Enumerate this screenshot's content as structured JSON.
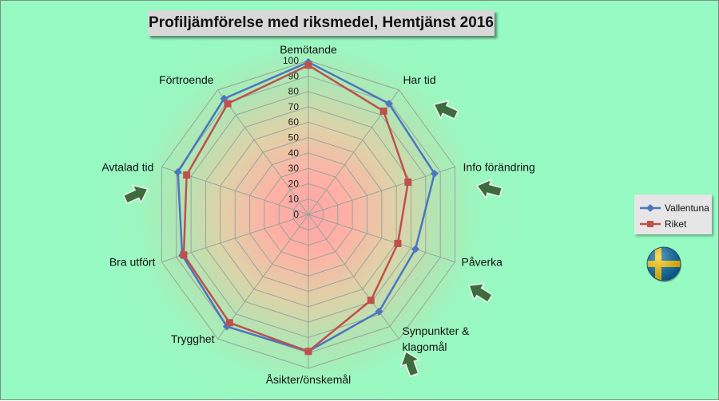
{
  "chart_data": {
    "type": "radar",
    "title": "Profiljämförelse med riksmedel, Hemtjänst 2016",
    "categories": [
      "Bemötande",
      "Har tid",
      "Info förändring",
      "Påverka",
      "Synpunkter &\nklagomål",
      "Åsikter/önskemål",
      "Trygghet",
      "Bra utfört",
      "Avtalad tid",
      "Förtroende"
    ],
    "ticks": [
      "0",
      "10",
      "20",
      "30",
      "40",
      "50",
      "60",
      "70",
      "80",
      "90",
      "100"
    ],
    "rlim": [
      0,
      100
    ],
    "series": [
      {
        "name": "Vallentuna",
        "color": "#4b76c1",
        "marker": "diamond",
        "values": [
          99,
          89,
          86,
          73,
          78,
          89,
          90,
          86,
          89,
          93
        ]
      },
      {
        "name": "Riket",
        "color": "#c0504d",
        "marker": "square",
        "values": [
          97,
          83,
          68,
          61,
          69,
          89,
          87,
          85,
          83,
          89
        ]
      }
    ],
    "legend_position": "right",
    "grid": true
  },
  "colors": {
    "gridline": "#9aa59a",
    "arrow_fill": "#3e6a3e",
    "arrow_stroke": "#eef5ee",
    "flag_blue": "#006aa7",
    "flag_yellow": "#fecc00"
  },
  "decorations": {
    "arrow_icon": "arrow-icon",
    "flag_icon": "sweden-flag-icon"
  }
}
